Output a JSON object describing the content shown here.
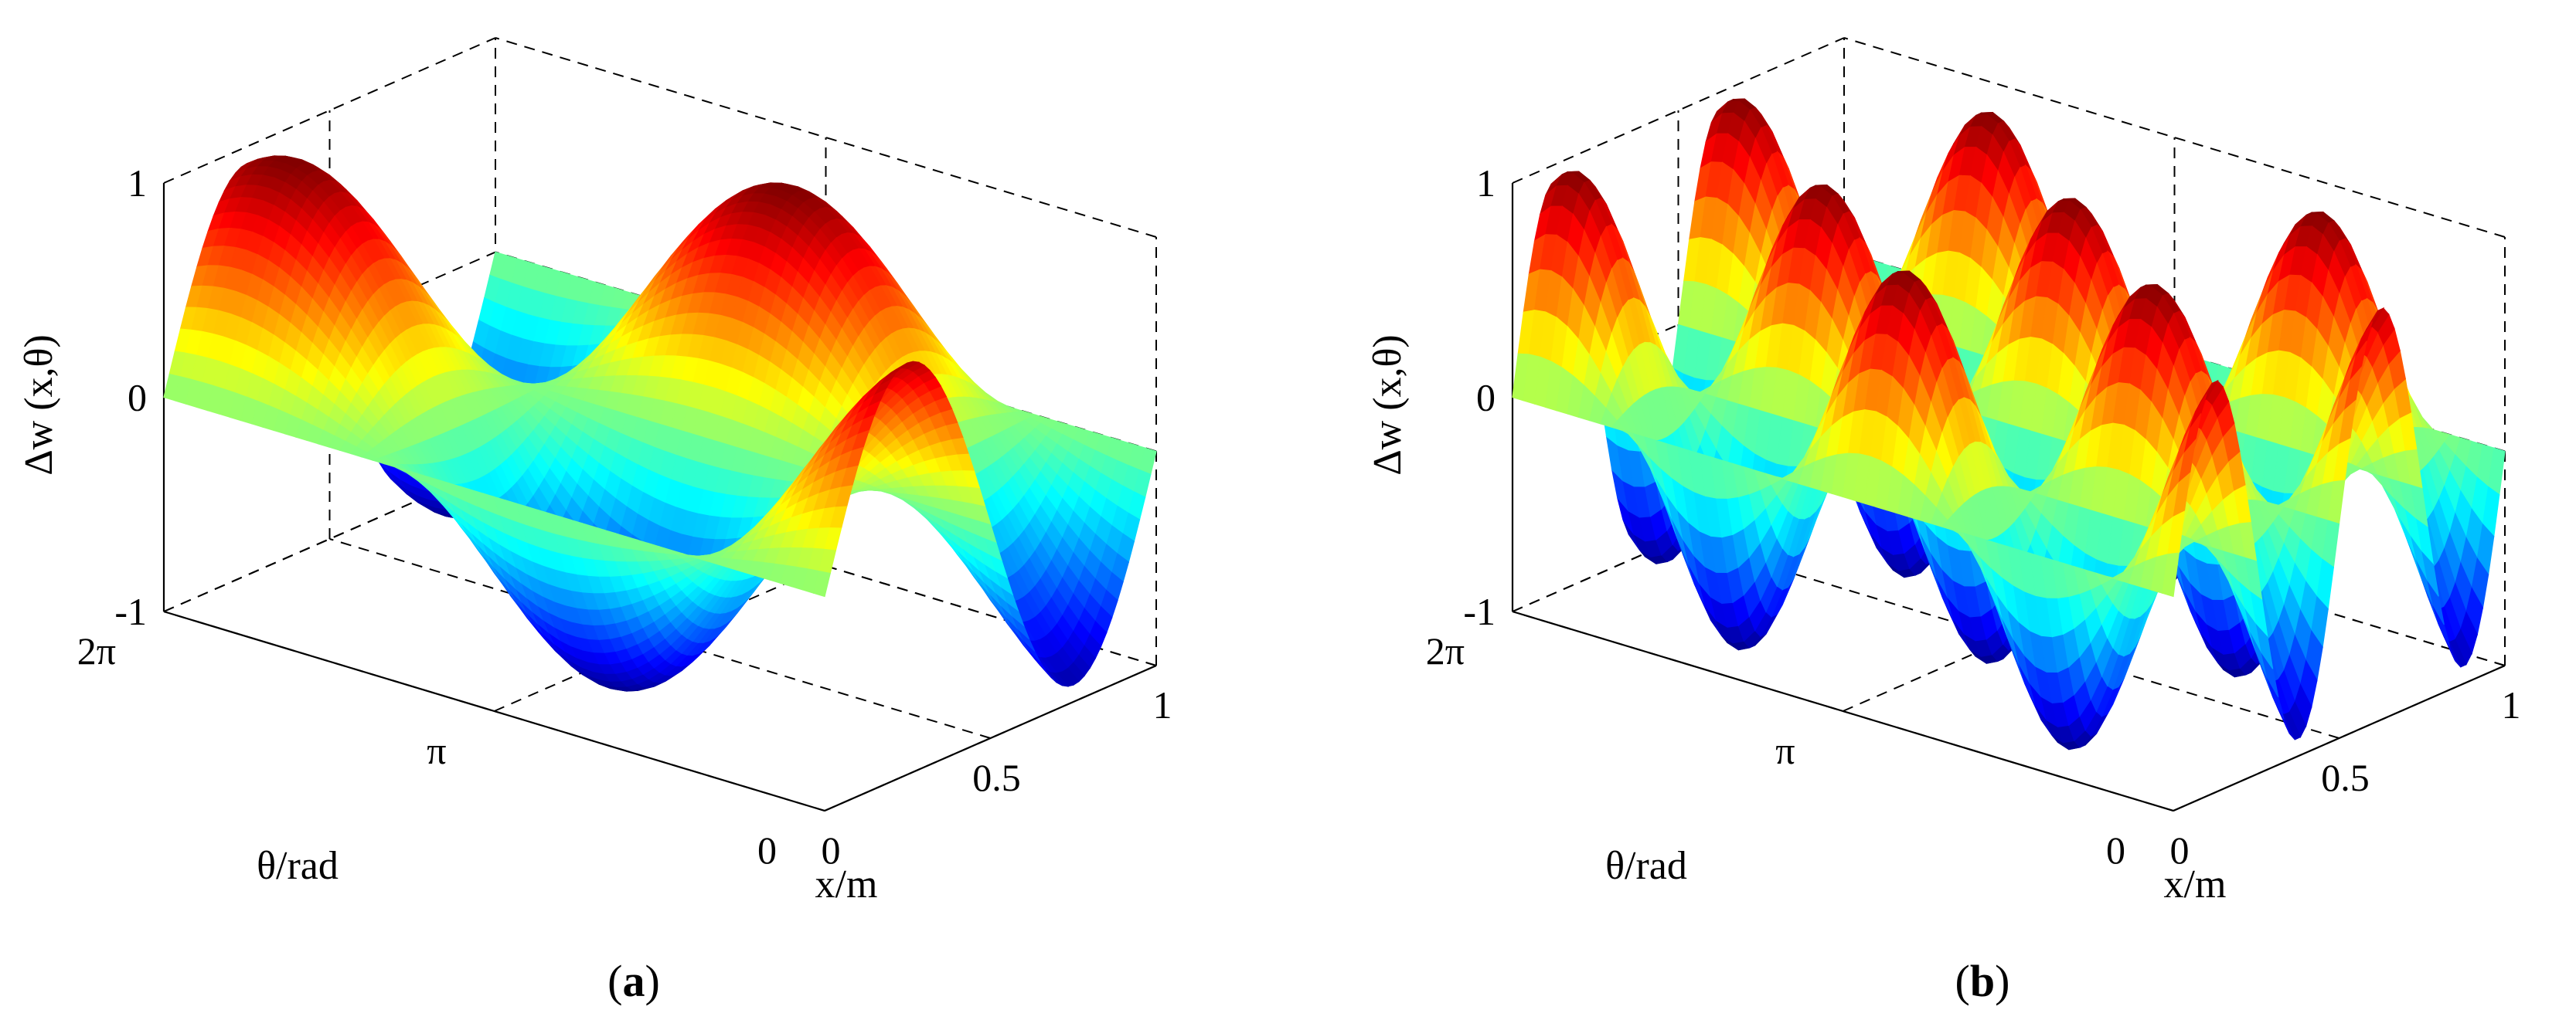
{
  "chart_data": [
    {
      "type": "surface",
      "panel_label": "(a)",
      "panel_letter": "a",
      "zlabel": "Δw (x,θ)",
      "xlabel": "x/m",
      "ylabel": "θ/rad",
      "xlim": [
        0,
        1
      ],
      "ylim_rad": [
        0,
        6.2832
      ],
      "zlim": [
        -1,
        1
      ],
      "x_ticks": [
        "0",
        "0.5",
        "1"
      ],
      "theta_ticks": [
        "0",
        "π",
        "2π"
      ],
      "z_ticks": [
        "-1",
        "0",
        "1"
      ],
      "mode": {
        "m": 2,
        "n": 1
      },
      "colormap": "jet",
      "grid": true,
      "box": true
    },
    {
      "type": "surface",
      "panel_label": "(b)",
      "panel_letter": "b",
      "zlabel": "Δw (x,θ)",
      "xlabel": "x/m",
      "ylabel": "θ/rad",
      "xlim": [
        0,
        1
      ],
      "ylim_rad": [
        0,
        6.2832
      ],
      "zlim": [
        -1,
        1
      ],
      "x_ticks": [
        "0",
        "0.5",
        "1"
      ],
      "theta_ticks": [
        "0",
        "π",
        "2π"
      ],
      "z_ticks": [
        "-1",
        "0",
        "1"
      ],
      "mode": {
        "m": 4,
        "n": 2
      },
      "colormap": "jet",
      "grid": true,
      "box": true
    }
  ]
}
